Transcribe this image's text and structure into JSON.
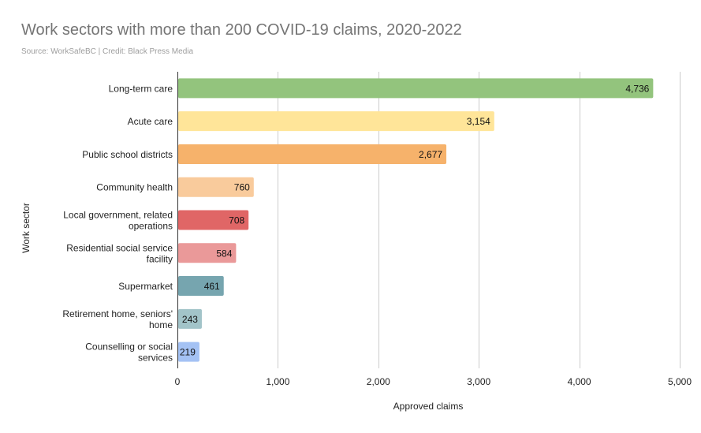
{
  "chart_data": {
    "type": "bar",
    "orientation": "horizontal",
    "title": "Work sectors with more than 200 COVID-19 claims, 2020-2022",
    "subtitle": "Source: WorkSafeBC | Credit: Black Press Media",
    "xlabel": "Approved claims",
    "ylabel": "Work sector",
    "xlim": [
      0,
      5000
    ],
    "xticks": [
      0,
      1000,
      2000,
      3000,
      4000,
      5000
    ],
    "xtick_labels": [
      "0",
      "1,000",
      "2,000",
      "3,000",
      "4,000",
      "5,000"
    ],
    "grid": true,
    "legend": "none",
    "categories": [
      "Long-term care",
      "Acute care",
      "Public school districts",
      "Community health",
      "Local government, related operations",
      "Residential social service facility",
      "Supermarket",
      "Retirement home, seniors' home",
      "Counselling or social services"
    ],
    "category_lines": [
      [
        "Long-term care"
      ],
      [
        "Acute care"
      ],
      [
        "Public school districts"
      ],
      [
        "Community health"
      ],
      [
        "Local government, related",
        "operations"
      ],
      [
        "Residential social service",
        "facility"
      ],
      [
        "Supermarket"
      ],
      [
        "Retirement home, seniors'",
        "home"
      ],
      [
        "Counselling or social",
        "services"
      ]
    ],
    "values": [
      4736,
      3154,
      2677,
      760,
      708,
      584,
      461,
      243,
      219
    ],
    "value_labels": [
      "4,736",
      "3,154",
      "2,677",
      "760",
      "708",
      "584",
      "461",
      "243",
      "219"
    ],
    "colors": [
      "#93c47d",
      "#ffe599",
      "#f6b26b",
      "#f9cb9c",
      "#e06666",
      "#ea9999",
      "#76a5af",
      "#a2c4c9",
      "#a4c2f4"
    ]
  }
}
